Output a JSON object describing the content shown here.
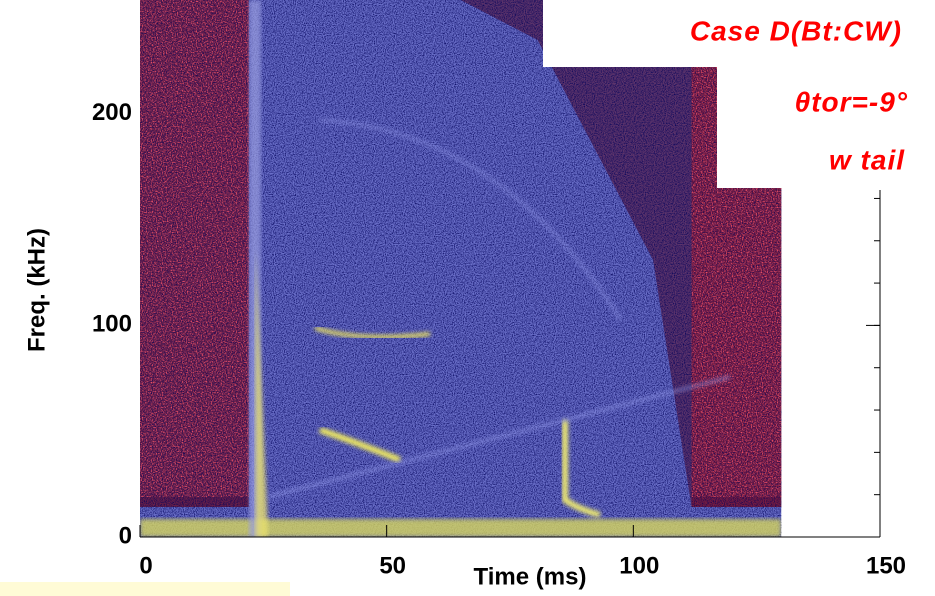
{
  "chart_data": {
    "type": "spectrogram",
    "xlabel": "Time (ms)",
    "ylabel": "Freq. (kHz)",
    "xlim": [
      0,
      150
    ],
    "ylim": [
      0,
      250
    ],
    "xticks": [
      0,
      50,
      100,
      150
    ],
    "yticks": [
      0,
      100,
      200
    ],
    "signal_xlim": [
      0,
      130
    ],
    "annotations": [
      "Case D(Bt:CW)",
      "θtor=-9°",
      "w tail"
    ]
  }
}
